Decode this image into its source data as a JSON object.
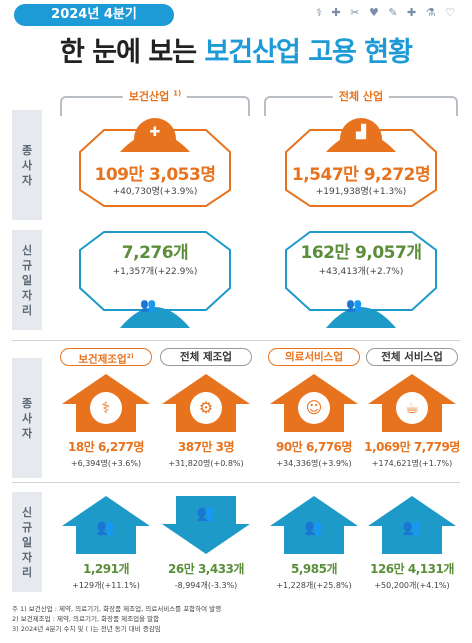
{
  "header": {
    "badge": "2024년 4분기",
    "icons": "⚕ ✚ ✂ ♥ ✎ ✚ ⚗ ♡",
    "title_black": "한 눈에 보는",
    "title_blue": "보건산업 고용 현황"
  },
  "row_labels": {
    "employees_1": "종\n사\n자",
    "jobs_1": "신\n규\n일\n자\n리",
    "employees_2": "종\n사\n자",
    "jobs_2": "신\n규\n일\n자\n리"
  },
  "top": {
    "health": {
      "label": "보건산업",
      "note_mark": "1)",
      "employees": "109만 3,053명",
      "employees_change": "+40,730명(+3.9%)",
      "jobs": "7,276개",
      "jobs_change": "+1,357개(+22.9%)",
      "icon": "first-aid-kit-icon"
    },
    "all": {
      "label": "전체 산업",
      "employees": "1,547만 9,272명",
      "employees_change": "+191,938명(+1.3%)",
      "jobs": "162만 9,057개",
      "jobs_change": "+43,413개(+2.7%)",
      "icon": "factory-icon"
    }
  },
  "bottom": [
    {
      "label": "보건제조업",
      "note_mark": "2)",
      "employees": "18만 6,277명",
      "employees_change": "+6,394명(+3.6%)",
      "jobs": "1,291개",
      "jobs_change": "+129개(+11.1%)",
      "icon": "medical-devices-icon",
      "down": false
    },
    {
      "label": "전체 제조업",
      "employees": "387만 3명",
      "employees_change": "+31,820명(+0.8%)",
      "jobs": "26만 3,433개",
      "jobs_change": "-8,994개(-3.3%)",
      "icon": "factory-machine-icon",
      "down": true
    },
    {
      "label": "의료서비스업",
      "employees": "90만 6,776명",
      "employees_change": "+34,336명(+3.9%)",
      "jobs": "5,985개",
      "jobs_change": "+1,228개(+25.8%)",
      "icon": "doctor-icon",
      "down": false
    },
    {
      "label": "전체 서비스업",
      "employees": "1,069만 7,779명",
      "employees_change": "+174,621명(+1.7%)",
      "jobs": "126만 4,131개",
      "jobs_change": "+50,200개(+4.1%)",
      "icon": "service-people-icon",
      "down": false
    }
  ],
  "notes": [
    "주  1) 보건산업 : 제약, 의료기기, 화장품 제조업, 의료서비스를 포함하여 발행",
    "     2) 보건제조업 : 제약, 의료기기, 화장품 제조업을 말함",
    "     3) 2024년 4분기 수치 및 (  )는 전년 동기 대비 증감임"
  ],
  "colors": {
    "orange": "#e8731f",
    "blue": "#1d9bd7",
    "green": "#5b8e3a",
    "teal": "#1e9ac9"
  }
}
